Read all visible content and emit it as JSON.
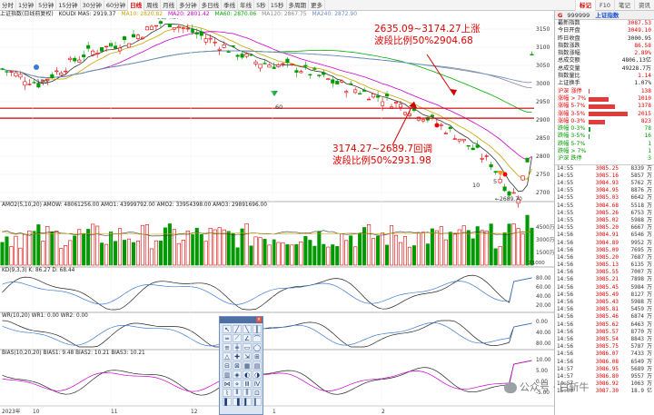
{
  "toolbar": {
    "periods": [
      "分时",
      "1分钟",
      "5分钟",
      "15分钟",
      "30分钟",
      "60分钟",
      "日线",
      "周线",
      "月线",
      "多分钟",
      "多日线",
      "季线",
      "年线",
      "5秒",
      "15秒",
      "多周期",
      "更多"
    ],
    "active_period": "日线",
    "right_tabs": [
      "标记",
      "F10",
      "笔记",
      "资讯"
    ]
  },
  "indicator_line": {
    "name": "上证指数(日线前复权)",
    "ma_label": "KOUDI MA5: 2919.37",
    "ma10": "MA10: 2820.82",
    "ma20": "MA20: 2801.42",
    "ma60": "MA60: 2870.06",
    "ma120": "MA120: 2867.75",
    "ma240": "MA240: 2872.90"
  },
  "price_axis": [
    "3150",
    "3100",
    "3050",
    "3000",
    "2950",
    "2900",
    "2850",
    "2800",
    "2750",
    "2700"
  ],
  "price_axis_range": [
    2680,
    3180
  ],
  "chart_labels": {
    "high": "3174.27",
    "low": "2689.70",
    "n120": "120",
    "n60": "60",
    "n10": "10",
    "n5": "5"
  },
  "annotations": {
    "top": [
      "2635.09~3174.27上涨",
      "波段比例50%2904.68"
    ],
    "bottom": [
      "3174.27~2689.7回调",
      "波段比例50%2931.98"
    ]
  },
  "panels": {
    "amo": {
      "header": "AMO2(5,10,20)  AMOW: 48061256.00  AMO1: 43999792.00  AMO2: 33954398.00  AMO3: 29891696.00",
      "axis": [
        "4500万",
        "3000万",
        "1500万"
      ],
      "unit": "X1000"
    },
    "kd": {
      "header": "KD(9,3,3)  K: 86.27  D: 68.44",
      "axis": [
        "80.00",
        "60.00",
        "40.00",
        "20.00"
      ]
    },
    "wr": {
      "header": "WR(10,20)  WR1: 0.00  WR2: 0.00",
      "axis": [
        "0.00",
        "40.00",
        "80.00"
      ]
    },
    "bias": {
      "header": "BIAS(10,20,20)  BIAS1: 9.48  BIAS2: 10.21  BIAS3: 10.21",
      "axis": [
        "10.00",
        "5.00",
        "0.00",
        "-5.00"
      ]
    }
  },
  "date_labels": [
    "2023年",
    "10",
    "11",
    "12",
    "1",
    "2"
  ],
  "sidebar": {
    "code_tag": "G",
    "code": "999999",
    "name": "上证指数",
    "stats": [
      {
        "label": "最新指数",
        "value": "3087.53",
        "color": "red"
      },
      {
        "label": "今日开盘",
        "value": "3049.10",
        "color": "red"
      },
      {
        "label": "昨日收盘",
        "value": "3000.95",
        "color": "blk"
      },
      {
        "label": "指数涨跌",
        "value": "86.58",
        "color": "red"
      },
      {
        "label": "指数涨幅",
        "value": "2.89%",
        "color": "red"
      },
      {
        "label": "总成交额",
        "value": "4806.13亿",
        "color": "blk"
      },
      {
        "label": "总成交量",
        "value": "49228.7万",
        "color": "blk"
      },
      {
        "label": "指数量比",
        "value": "1.14",
        "color": "red"
      },
      {
        "label": "上证换手",
        "value": "1.07%",
        "color": "blk"
      }
    ],
    "dist": [
      {
        "label": "沪深 涨停",
        "value": "138",
        "fill": 0.03,
        "color": "red"
      },
      {
        "label": "涨幅 > 7%",
        "value": "1010",
        "fill": 0.5,
        "color": "red"
      },
      {
        "label": "涨幅 5-7%",
        "value": "1378",
        "fill": 0.68,
        "color": "red"
      },
      {
        "label": "涨幅 3-5%",
        "value": "2015",
        "fill": 1.0,
        "color": "red"
      },
      {
        "label": "涨幅 0-3%",
        "value": "823",
        "fill": 0.41,
        "color": "red"
      },
      {
        "label": "跌幅 0-3%",
        "value": "78",
        "fill": 0.04,
        "color": "green"
      },
      {
        "label": "跌幅 3-5%",
        "value": "16",
        "fill": 0.01,
        "color": "green"
      },
      {
        "label": "跌幅 5-7%",
        "value": "1",
        "fill": 0.0,
        "color": "green"
      },
      {
        "label": "跌幅 > 7%",
        "value": "1",
        "fill": 0.0,
        "color": "green"
      },
      {
        "label": "沪深 跌停",
        "value": "3",
        "fill": 0.0,
        "color": "green"
      }
    ],
    "ticks": [
      {
        "t": "14:55",
        "p": "3085.25",
        "v": "8339",
        "u": "万"
      },
      {
        "t": "14:55",
        "p": "3085.16",
        "v": "5857",
        "u": "万"
      },
      {
        "t": "14:55",
        "p": "3084.93",
        "v": "5762",
        "u": "万"
      },
      {
        "t": "14:55",
        "p": "3084.95",
        "v": "8876",
        "u": "万"
      },
      {
        "t": "14:55",
        "p": "3085.03",
        "v": "6642",
        "u": "万"
      },
      {
        "t": "14:55",
        "p": "3084.68",
        "v": "5518",
        "u": "万"
      },
      {
        "t": "14:55",
        "p": "3085.26",
        "v": "6753",
        "u": "万"
      },
      {
        "t": "14:55",
        "p": "3085.02",
        "v": "5988",
        "u": "万"
      },
      {
        "t": "14:55",
        "p": "3085.20",
        "v": "6667",
        "u": "万"
      },
      {
        "t": "14:56",
        "p": "3084.91",
        "v": "6546",
        "u": "万"
      },
      {
        "t": "14:56",
        "p": "3084.89",
        "v": "9952",
        "u": "万"
      },
      {
        "t": "14:56",
        "p": "3085.09",
        "v": "7695",
        "u": "万"
      },
      {
        "t": "14:56",
        "p": "3085.20",
        "v": "7687",
        "u": "万"
      },
      {
        "t": "14:56",
        "p": "3085.13",
        "v": "6135",
        "u": "万"
      },
      {
        "t": "14:56",
        "p": "3085.55",
        "v": "7007",
        "u": "万"
      },
      {
        "t": "14:56",
        "p": "3085.21",
        "v": "7898",
        "u": "万"
      },
      {
        "t": "14:56",
        "p": "3085.45",
        "v": "5984",
        "u": "万"
      },
      {
        "t": "14:56",
        "p": "3085.49",
        "v": "8127",
        "u": "万"
      },
      {
        "t": "14:56",
        "p": "3085.43",
        "v": "5988",
        "u": "万"
      },
      {
        "t": "14:56",
        "p": "3085.81",
        "v": "5459",
        "u": "万"
      },
      {
        "t": "14:56",
        "p": "3085.46",
        "v": "6874",
        "u": "万"
      },
      {
        "t": "14:56",
        "p": "3085.62",
        "v": "6463",
        "u": "万"
      },
      {
        "t": "14:56",
        "p": "3085.57",
        "v": "8770",
        "u": "万"
      },
      {
        "t": "14:56",
        "p": "3085.54",
        "v": "8843",
        "u": "万"
      },
      {
        "t": "14:56",
        "p": "3085.75",
        "v": "5787",
        "u": "万"
      },
      {
        "t": "14:56",
        "p": "3086.07",
        "v": "7433",
        "u": "万"
      },
      {
        "t": "14:56",
        "p": "3086.08",
        "v": "6549",
        "u": "万"
      },
      {
        "t": "14:57",
        "p": "3086.95",
        "v": "5689",
        "u": "万"
      },
      {
        "t": "14:57",
        "p": "3086.80",
        "v": "9557",
        "u": "万"
      },
      {
        "t": "14:57",
        "p": "3086.92",
        "v": "1063",
        "u": "万"
      },
      {
        "t": "15:00",
        "p": "3087.30",
        "v": "18.9",
        "u": "亿"
      }
    ]
  },
  "palette_tools": [
    "↖",
    "╱",
    "╲",
    "┃",
    "═",
    "⟋",
    "∠",
    "⌒",
    "≡",
    "╪",
    "▭",
    "◯",
    "△",
    "✚",
    "⇲",
    "⊞",
    "⊟",
    "⊠",
    "▦",
    "▤",
    "▥",
    "◈",
    "◐",
    "◑",
    "⋈",
    "⋄",
    "Ⅲ",
    "Ⅳ",
    "⌇",
    "⫴",
    "⫼",
    "⊡",
    "▌",
    "▐",
    "▍",
    "▎"
  ],
  "watermark": "公众号 · 白斩牛",
  "colors": {
    "up": "#e00000",
    "down": "#009900",
    "ma5": "#333333",
    "ma10": "#c9a400",
    "ma20": "#cc00cc",
    "ma60": "#00aa00",
    "ma120": "#888888",
    "ma240": "#6a8cc8",
    "hline": "#cc0000"
  }
}
